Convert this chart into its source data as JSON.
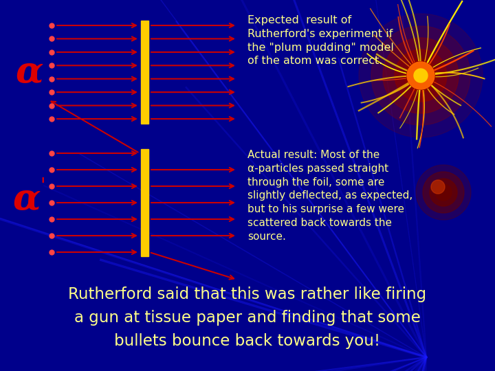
{
  "bg_color": "#00008B",
  "alpha_color": "#dd0000",
  "foil_color": "#ffcc00",
  "arrow_color": "#cc0000",
  "dot_color": "#ff4444",
  "text_color_yellow": "#ffff88",
  "alpha_label": "α",
  "top_text": "Expected  result of\nRutherford's experiment if\nthe \"plum pudding\" model\nof the atom was correct.",
  "mid_text": "Actual result: Most of the\nα‐particles passed straight\nthrough the foil, some are\nslightly deflected, as expected,\nbut to his surprise a few were\nscattered back towards the\nsource.",
  "bottom_text1": "Rutherford said that this was rather like firing",
  "bottom_text2": "a gun at tissue paper and finding that some",
  "bottom_text3": "bullets bounce back towards you!",
  "figwidth": 7.2,
  "figheight": 5.4,
  "dpi": 100
}
